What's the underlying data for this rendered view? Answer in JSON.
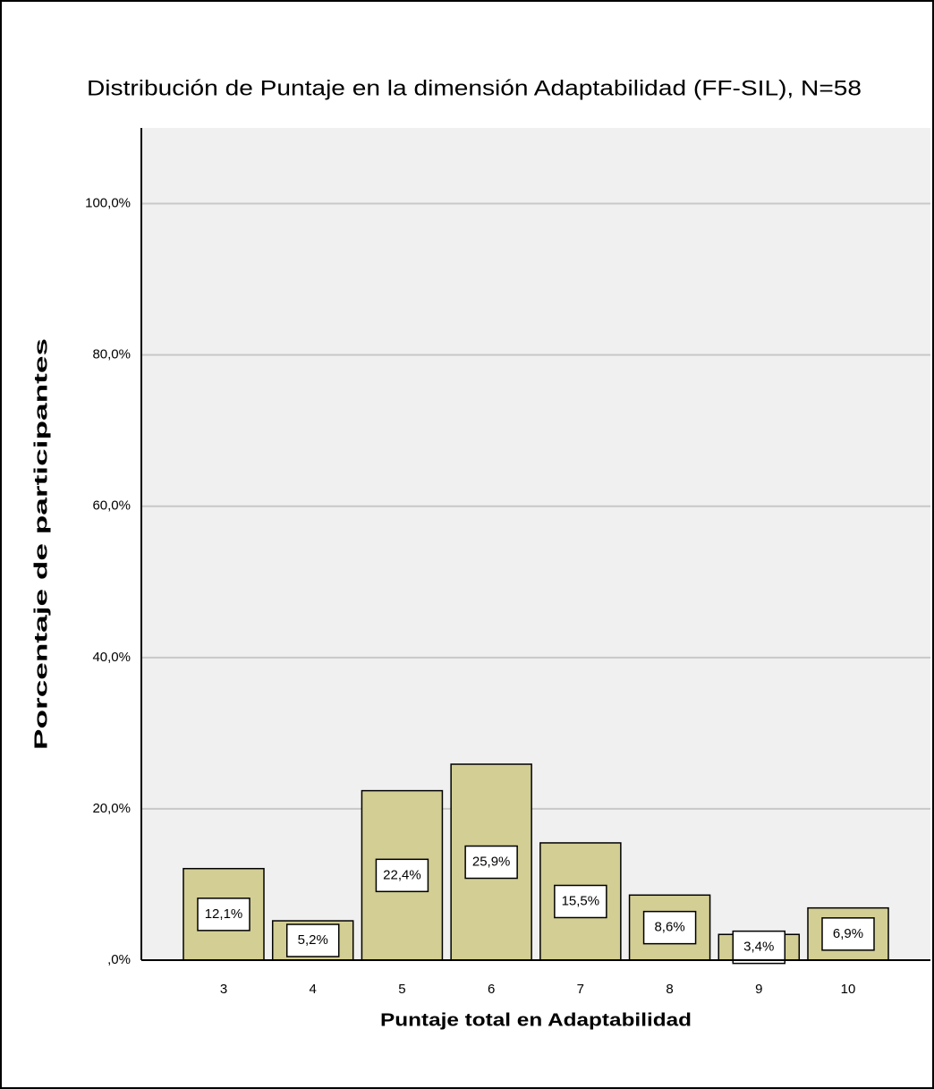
{
  "chart_data": {
    "type": "bar",
    "title": "Distribución de Puntaje en la dimensión Adaptabilidad (FF-SIL), N=58",
    "x_label": "Puntaje total en Adaptabilidad",
    "y_label": "Porcentaje de participantes",
    "categories": [
      "3",
      "4",
      "5",
      "6",
      "7",
      "8",
      "9",
      "10"
    ],
    "values": [
      12.1,
      5.2,
      22.4,
      25.9,
      15.5,
      8.6,
      3.4,
      6.9
    ],
    "value_labels": [
      "12,1%",
      "5,2%",
      "22,4%",
      "25,9%",
      "15,5%",
      "8,6%",
      "3,4%",
      "6,9%"
    ],
    "color": "#d3ce94",
    "ylim": [
      0,
      110
    ],
    "yticks": [
      {
        "value": 0,
        "label": ",0%"
      },
      {
        "value": 20,
        "label": "20,0%"
      },
      {
        "value": 40,
        "label": "40,0%"
      },
      {
        "value": 60,
        "label": "60,0%"
      },
      {
        "value": 80,
        "label": "80,0%"
      },
      {
        "value": 100,
        "label": "100,0%"
      }
    ],
    "grid": true
  }
}
